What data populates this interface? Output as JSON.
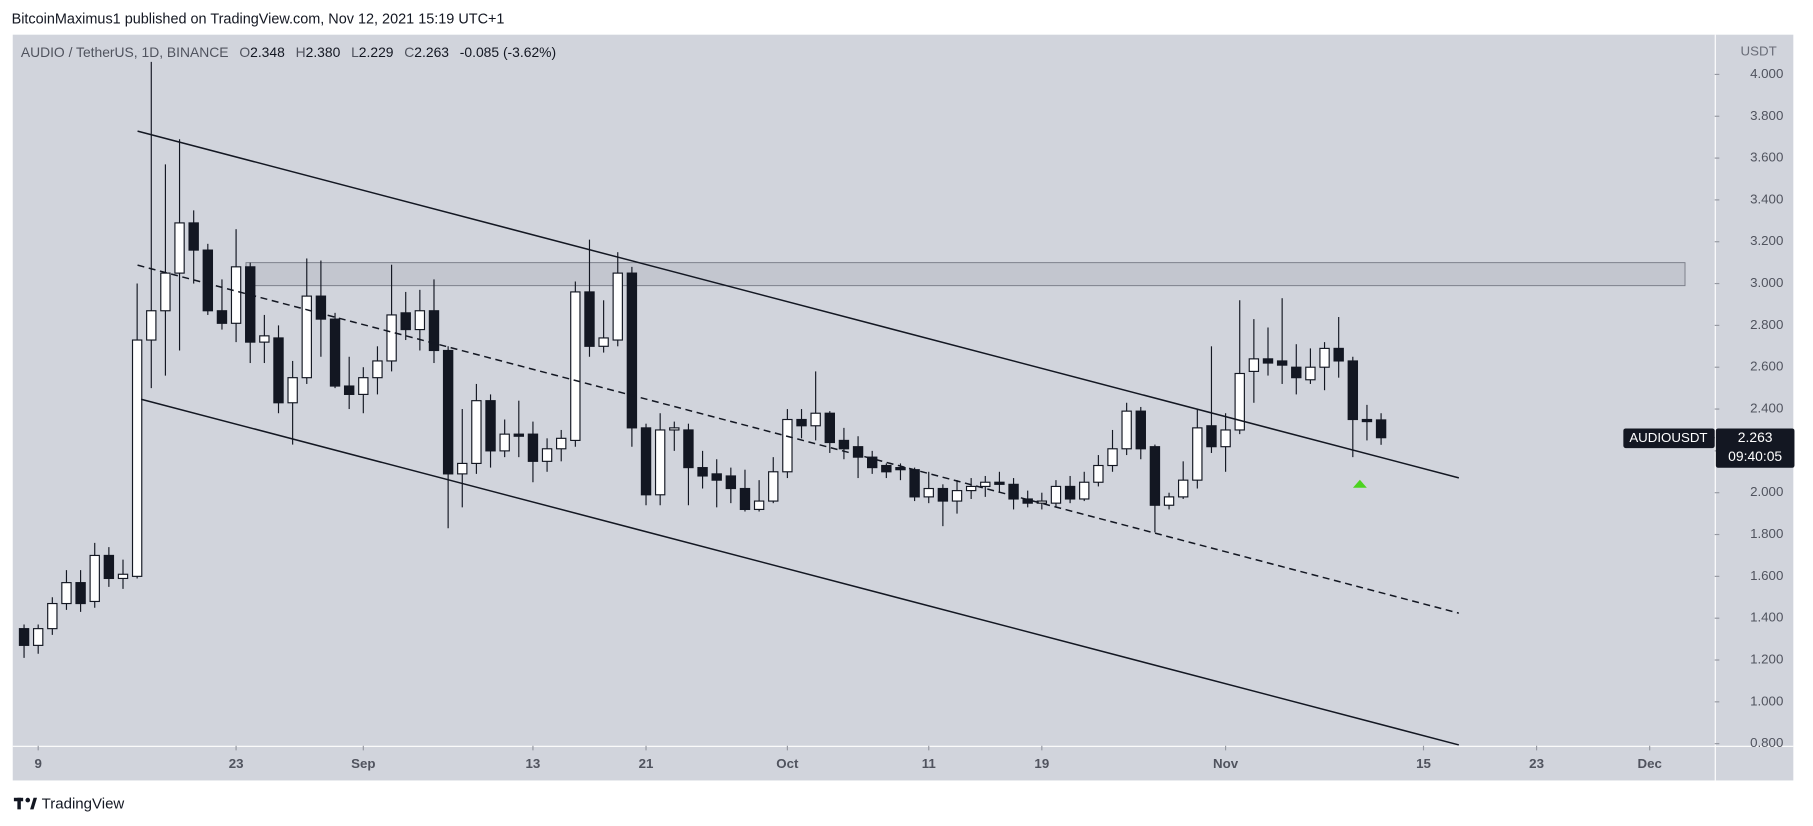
{
  "header": {
    "attribution": "BitcoinMaximus1 published on TradingView.com, Nov 12, 2021 15:19 UTC+1",
    "brand": "TradingView"
  },
  "legend": {
    "o_label": "O",
    "open": "2.348",
    "h_label": "H",
    "high": "2.380",
    "l_label": "L",
    "low": "2.229",
    "c_label": "C",
    "close": "2.263",
    "change": "-0.085 (-3.62%)"
  },
  "chart_data": {
    "type": "candlestick",
    "title": "AUDIO / TetherUS, 1D, BINANCE",
    "y_axis_label": "USDT",
    "up_color": "#ffffff",
    "down_color": "#131722",
    "grid": false,
    "x": [
      -1,
      0,
      1,
      2,
      3,
      4,
      5,
      6,
      7,
      8,
      9,
      10,
      11,
      12,
      13,
      14,
      15,
      16,
      17,
      18,
      19,
      20,
      21,
      22,
      23,
      24,
      25,
      26,
      27,
      28,
      29,
      30,
      31,
      32,
      33,
      34,
      35,
      36,
      37,
      38,
      39,
      40,
      41,
      42,
      43,
      44,
      45,
      46,
      47,
      48,
      49,
      50,
      51,
      52,
      53,
      54,
      55,
      56,
      57,
      58,
      59,
      60,
      61,
      62,
      63,
      64,
      65,
      66,
      67,
      68,
      69,
      70,
      71,
      72,
      73,
      74,
      75,
      76,
      77,
      78,
      79,
      80,
      81,
      82,
      83,
      84,
      85,
      86,
      87,
      88,
      89,
      90,
      91,
      92,
      93,
      94,
      95
    ],
    "open": [
      1.35,
      1.27,
      1.35,
      1.47,
      1.57,
      1.48,
      1.7,
      1.59,
      1.6,
      2.73,
      2.87,
      3.05,
      3.29,
      3.16,
      2.87,
      2.81,
      3.08,
      2.72,
      2.74,
      2.43,
      2.55,
      2.94,
      2.83,
      2.51,
      2.47,
      2.55,
      2.63,
      2.86,
      2.78,
      2.87,
      2.68,
      2.09,
      2.14,
      2.44,
      2.2,
      2.28,
      2.28,
      2.15,
      2.21,
      2.25,
      2.96,
      2.7,
      2.73,
      3.05,
      2.31,
      1.99,
      2.3,
      2.3,
      2.12,
      2.09,
      2.08,
      2.02,
      1.92,
      1.96,
      2.1,
      2.35,
      2.32,
      2.38,
      2.25,
      2.22,
      2.17,
      2.13,
      2.12,
      2.11,
      1.98,
      2.02,
      1.96,
      2.01,
      2.03,
      2.05,
      2.04,
      1.97,
      1.95,
      1.95,
      2.03,
      1.97,
      2.05,
      2.13,
      2.21,
      2.39,
      2.22,
      1.94,
      1.98,
      2.06,
      2.32,
      2.22,
      2.3,
      2.58,
      2.64,
      2.63,
      2.6,
      2.54,
      2.6,
      2.69,
      2.63,
      2.35,
      2.348
    ],
    "high": [
      1.37,
      1.37,
      1.5,
      1.63,
      1.63,
      1.76,
      1.74,
      1.68,
      3.0,
      4.06,
      3.57,
      3.69,
      3.35,
      3.19,
      3.02,
      3.26,
      3.1,
      2.85,
      2.8,
      2.63,
      3.12,
      3.11,
      2.86,
      2.65,
      2.6,
      2.7,
      3.09,
      2.96,
      2.97,
      3.02,
      2.7,
      2.4,
      2.52,
      2.47,
      2.35,
      2.44,
      2.34,
      2.26,
      2.3,
      3.01,
      3.21,
      2.92,
      3.15,
      3.08,
      2.33,
      2.38,
      2.34,
      2.33,
      2.2,
      2.16,
      2.12,
      2.11,
      2.06,
      2.17,
      2.4,
      2.4,
      2.58,
      2.39,
      2.31,
      2.27,
      2.2,
      2.14,
      2.14,
      2.12,
      2.1,
      2.04,
      2.06,
      2.07,
      2.08,
      2.1,
      2.07,
      2.01,
      2.0,
      2.06,
      2.08,
      2.1,
      2.18,
      2.3,
      2.43,
      2.41,
      2.23,
      2.0,
      2.15,
      2.4,
      2.7,
      2.38,
      2.92,
      2.83,
      2.79,
      2.93,
      2.71,
      2.69,
      2.72,
      2.84,
      2.65,
      2.42,
      2.38
    ],
    "low": [
      1.21,
      1.23,
      1.32,
      1.44,
      1.43,
      1.45,
      1.55,
      1.54,
      1.59,
      2.5,
      2.56,
      2.68,
      3.0,
      2.85,
      2.78,
      2.72,
      2.62,
      2.62,
      2.38,
      2.23,
      2.52,
      2.65,
      2.5,
      2.4,
      2.38,
      2.47,
      2.58,
      2.73,
      2.68,
      2.62,
      1.83,
      1.93,
      2.09,
      2.12,
      2.17,
      2.17,
      2.05,
      2.1,
      2.15,
      2.22,
      2.65,
      2.67,
      2.7,
      2.22,
      1.94,
      1.94,
      2.2,
      1.94,
      2.02,
      1.93,
      1.95,
      1.91,
      1.91,
      1.95,
      2.07,
      2.26,
      2.25,
      2.19,
      2.16,
      2.07,
      2.09,
      2.07,
      2.06,
      1.96,
      1.95,
      1.84,
      1.9,
      1.97,
      1.98,
      2.0,
      1.92,
      1.93,
      1.92,
      1.93,
      1.95,
      1.96,
      2.03,
      2.1,
      2.18,
      2.16,
      1.81,
      1.92,
      1.97,
      2.02,
      2.19,
      2.1,
      2.28,
      2.43,
      2.56,
      2.52,
      2.47,
      2.52,
      2.49,
      2.55,
      2.17,
      2.25,
      2.229
    ],
    "close": [
      1.27,
      1.35,
      1.47,
      1.57,
      1.47,
      1.7,
      1.59,
      1.61,
      2.73,
      2.87,
      3.05,
      3.29,
      3.16,
      2.87,
      2.81,
      3.08,
      2.72,
      2.75,
      2.43,
      2.55,
      2.94,
      2.83,
      2.51,
      2.47,
      2.55,
      2.63,
      2.85,
      2.78,
      2.87,
      2.68,
      2.09,
      2.14,
      2.44,
      2.2,
      2.28,
      2.27,
      2.15,
      2.21,
      2.26,
      2.96,
      2.7,
      2.74,
      3.05,
      2.31,
      1.99,
      2.3,
      2.31,
      2.12,
      2.08,
      2.06,
      2.02,
      1.92,
      1.96,
      2.1,
      2.35,
      2.32,
      2.38,
      2.24,
      2.21,
      2.17,
      2.12,
      2.1,
      2.11,
      1.98,
      2.02,
      1.96,
      2.01,
      2.03,
      2.05,
      2.04,
      1.97,
      1.95,
      1.96,
      2.03,
      1.97,
      2.05,
      2.13,
      2.21,
      2.39,
      2.21,
      1.94,
      1.98,
      2.06,
      2.31,
      2.22,
      2.3,
      2.57,
      2.64,
      2.62,
      2.61,
      2.55,
      2.6,
      2.69,
      2.63,
      2.35,
      2.34,
      2.263
    ],
    "xlim": [
      -1.8,
      118.6
    ],
    "ylim": [
      0.79,
      4.19
    ],
    "xticks": [
      {
        "value": 0,
        "label": "9"
      },
      {
        "value": 14,
        "label": "23"
      },
      {
        "value": 23,
        "label": "Sep"
      },
      {
        "value": 35,
        "label": "13"
      },
      {
        "value": 43,
        "label": "21"
      },
      {
        "value": 53,
        "label": "Oct"
      },
      {
        "value": 63,
        "label": "11"
      },
      {
        "value": 71,
        "label": "19"
      },
      {
        "value": 84,
        "label": "Nov"
      },
      {
        "value": 98,
        "label": "15"
      },
      {
        "value": 106,
        "label": "23"
      },
      {
        "value": 114,
        "label": "Dec"
      }
    ],
    "yticks": [
      {
        "value": 0.8,
        "label": "0.800"
      },
      {
        "value": 1.0,
        "label": "1.000"
      },
      {
        "value": 1.2,
        "label": "1.200"
      },
      {
        "value": 1.4,
        "label": "1.400"
      },
      {
        "value": 1.6,
        "label": "1.600"
      },
      {
        "value": 1.8,
        "label": "1.800"
      },
      {
        "value": 2.0,
        "label": "2.000"
      },
      {
        "value": 2.2,
        "label": "2.200"
      },
      {
        "value": 2.4,
        "label": "2.400"
      },
      {
        "value": 2.6,
        "label": "2.600"
      },
      {
        "value": 2.8,
        "label": "2.800"
      },
      {
        "value": 3.0,
        "label": "3.000"
      },
      {
        "value": 3.2,
        "label": "3.200"
      },
      {
        "value": 3.4,
        "label": "3.400"
      },
      {
        "value": 3.6,
        "label": "3.600"
      },
      {
        "value": 3.8,
        "label": "3.800"
      },
      {
        "value": 4.0,
        "label": "4.000"
      }
    ],
    "trend_lines": [
      {
        "style": "solid",
        "x": [
          7.03,
          100.5
        ],
        "y": [
          3.729,
          2.071
        ]
      },
      {
        "style": "dashed",
        "x": [
          7.03,
          100.5
        ],
        "y": [
          3.088,
          1.424
        ]
      },
      {
        "style": "solid",
        "x": [
          7.28,
          100.5
        ],
        "y": [
          2.447,
          0.794
        ]
      }
    ],
    "zone": {
      "x": [
        14.7,
        116.5
      ],
      "y": [
        2.99,
        3.1
      ],
      "color": "#b2b5be"
    },
    "marker": {
      "x": 93.5,
      "y": 2.04,
      "color": "#4cd320"
    },
    "price_label": {
      "symbol": "AUDIOUSDT",
      "price": "2.263",
      "countdown": "09:40:05",
      "value": 2.263
    }
  }
}
